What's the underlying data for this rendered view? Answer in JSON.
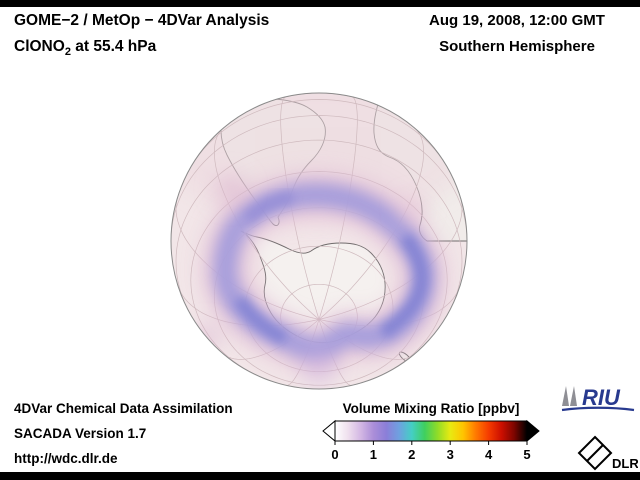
{
  "header": {
    "title": "GOME−2 / MetOp − 4DVar Analysis",
    "species_prefix": "ClONO",
    "species_sub": "2",
    "species_suffix": " at 55.4 hPa",
    "datetime": "Aug 19, 2008, 12:00 GMT",
    "hemisphere": "Southern Hemisphere"
  },
  "footer": {
    "line1": "4DVar Chemical Data Assimilation",
    "line2": "SACADA Version 1.7",
    "line3": "http://wdc.dlr.de"
  },
  "colorbar": {
    "label": "Volume Mixing Ratio [ppbv]",
    "min": 0,
    "max": 5,
    "unit": "ppbv",
    "ticks": [
      "0",
      "1",
      "2",
      "3",
      "4",
      "5"
    ],
    "gradient": [
      "#ffffff",
      "#efe0ee",
      "#d4b8e4",
      "#ab8ed8",
      "#8b7ed8",
      "#6fa0e0",
      "#44cfc4",
      "#3fcf5f",
      "#8fdc28",
      "#e8ea12",
      "#ffc400",
      "#ff7a00",
      "#f53c00",
      "#cc0f00",
      "#7d0500",
      "#000000"
    ]
  },
  "logos": {
    "riu_text": "RIU",
    "dlr_text": "DLR"
  },
  "map_colors": {
    "globe_base": "#f2e6e8",
    "wash": "#ecd7de",
    "land": "#f1ecea",
    "antarctica": "#f5f1ef",
    "graticule": "#cfbabe",
    "outline": "#6f6b6b",
    "ring_glow": "#e2bed6",
    "ring_core": "#a09adc",
    "ring_accent": "#7b7ed2",
    "limb": "#8a8a8a"
  },
  "chart_data": {
    "type": "heatmap",
    "title": "GOME-2 / MetOp - 4DVar Analysis, ClONO2 at 55.4 hPa",
    "datetime": "Aug 19, 2008, 12:00 GMT",
    "region": "Southern Hemisphere",
    "projection": "orthographic, centered near 58S",
    "colorbar_label": "Volume Mixing Ratio [ppbv]",
    "value_range_ppbv": [
      0,
      5
    ],
    "tick_values": [
      0,
      1,
      2,
      3,
      4,
      5
    ],
    "legend_position": "bottom-center",
    "observed_pattern": [
      {
        "feature": "background field over most of hemisphere",
        "approx_value_ppbv": 0.3,
        "color": "pale pink"
      },
      {
        "feature": "enhanced ClONO2 collar ring around Antarctica near 60S",
        "approx_value_ppbv": 1.2,
        "color": "purple-blue"
      },
      {
        "feature": "low values over Antarctic interior",
        "approx_value_ppbv": 0.1,
        "color": "near white"
      }
    ]
  }
}
